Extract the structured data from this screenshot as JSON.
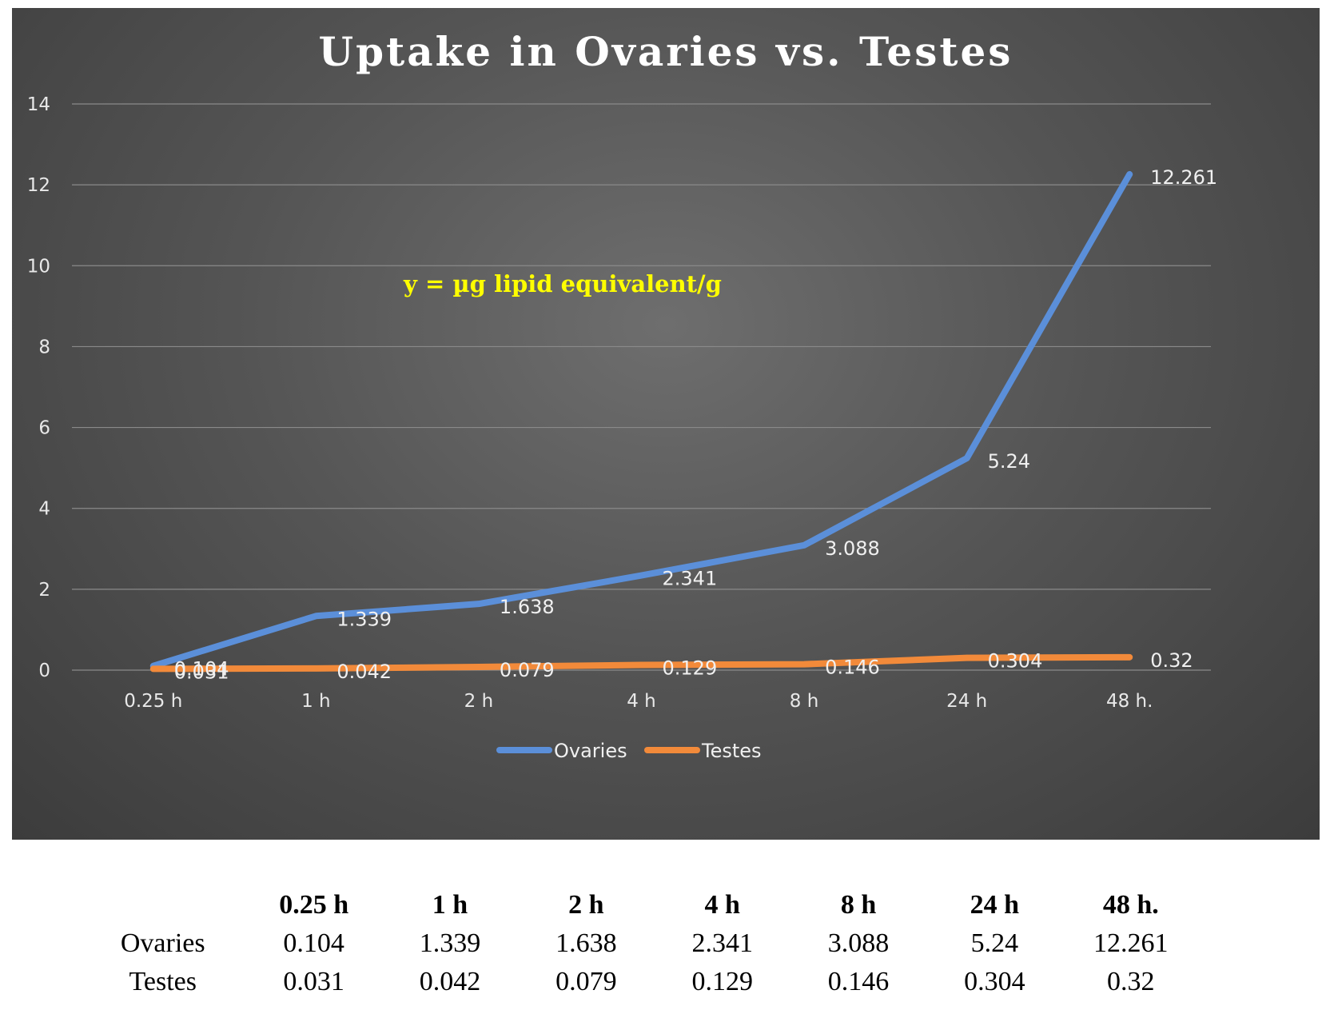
{
  "chart_data": {
    "type": "line",
    "title": "Uptake in Ovaries vs. Testes",
    "annotation": "y = µg lipid equivalent/g",
    "categories": [
      "0.25 h",
      "1 h",
      "2 h",
      "4 h",
      "8 h",
      "24 h",
      "48 h."
    ],
    "series": [
      {
        "name": "Ovaries",
        "color": "#5b8fd9",
        "values": [
          0.104,
          1.339,
          1.638,
          2.341,
          3.088,
          5.24,
          12.261
        ],
        "labels": [
          "0.104",
          "1.339",
          "1.638",
          "2.341",
          "3.088",
          "5.24",
          "12.261"
        ]
      },
      {
        "name": "Testes",
        "color": "#f28a3a",
        "values": [
          0.031,
          0.042,
          0.079,
          0.129,
          0.146,
          0.304,
          0.32
        ],
        "labels": [
          "0.031",
          "0.042",
          "0.079",
          "0.129",
          "0.146",
          "0.304",
          "0.32"
        ]
      }
    ],
    "ylim": [
      0,
      14
    ],
    "yticks": [
      "0",
      "2",
      "4",
      "6",
      "8",
      "10",
      "12",
      "14"
    ],
    "grid": true,
    "legend_position": "bottom",
    "background_color": "#555555"
  },
  "table": {
    "headers": [
      "0.25 h",
      "1 h",
      "2 h",
      "4 h",
      "8 h",
      "24 h",
      "48 h."
    ],
    "rows": [
      {
        "label": "Ovaries",
        "cells": [
          "0.104",
          "1.339",
          "1.638",
          "2.341",
          "3.088",
          "5.24",
          "12.261"
        ]
      },
      {
        "label": "Testes",
        "cells": [
          "0.031",
          "0.042",
          "0.079",
          "0.129",
          "0.146",
          "0.304",
          "0.32"
        ]
      }
    ]
  }
}
